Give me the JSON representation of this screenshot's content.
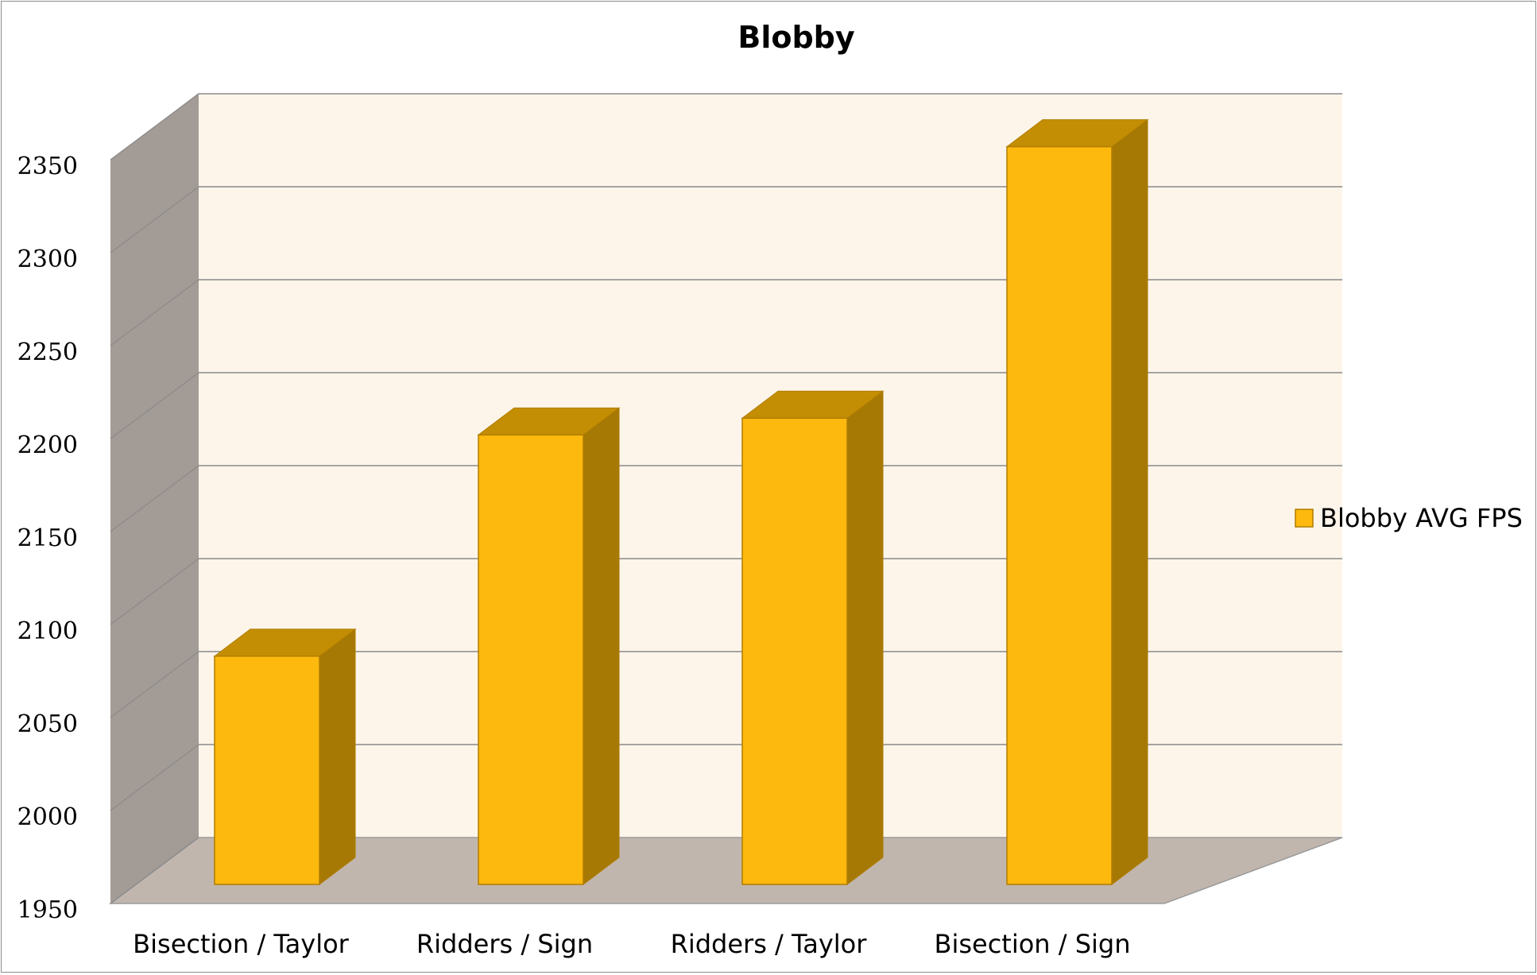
{
  "chart_data": {
    "type": "bar",
    "title": "Blobby",
    "categories": [
      "Bisection / Taylor",
      "Ridders / Sign",
      "Ridders / Taylor",
      "Bisection / Sign"
    ],
    "series": [
      {
        "name": "Blobby AVG FPS",
        "values": [
          2083,
          2202,
          2211,
          2357
        ]
      }
    ],
    "ylim": [
      1950,
      2350
    ],
    "yticks": [
      1950,
      2000,
      2050,
      2100,
      2150,
      2200,
      2250,
      2300,
      2350
    ],
    "xlabel": "",
    "ylabel": "",
    "grid": true,
    "legend_position": "right",
    "style": "3d-column",
    "colors": {
      "bar_front": "#fdb90d",
      "bar_side": "#a67804",
      "bar_top": "#c48e04",
      "bar_edge": "#b07d00",
      "back_wall": "#fdf5ea",
      "side_wall": "#a39b96",
      "floor": "#c1b6ae",
      "gridline": "#8a8a8a"
    }
  }
}
